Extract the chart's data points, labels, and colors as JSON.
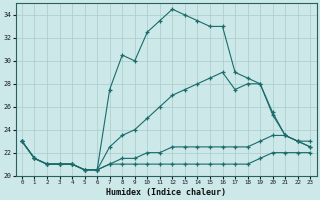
{
  "xlabel": "Humidex (Indice chaleur)",
  "bg_color": "#cce8e8",
  "grid_color": "#aacccc",
  "line_color": "#1a6b6b",
  "xlim": [
    -0.5,
    23.5
  ],
  "ylim": [
    20,
    35
  ],
  "xticks": [
    0,
    1,
    2,
    3,
    4,
    5,
    6,
    7,
    8,
    9,
    10,
    11,
    12,
    13,
    14,
    15,
    16,
    17,
    18,
    19,
    20,
    21,
    22,
    23
  ],
  "yticks": [
    20,
    22,
    24,
    26,
    28,
    30,
    32,
    34
  ],
  "line_peak_x": [
    0,
    1,
    2,
    3,
    4,
    5,
    6,
    7,
    8,
    9,
    10,
    11,
    12,
    13,
    14,
    15,
    16,
    17,
    18,
    19,
    20,
    21,
    22,
    23
  ],
  "line_peak_y": [
    23,
    21.5,
    21,
    21,
    21,
    20.5,
    20.5,
    27.5,
    30.5,
    30,
    32.5,
    33.5,
    34.5,
    34,
    33.5,
    33,
    33,
    29,
    28.5,
    28,
    25.3,
    23.5,
    23,
    22.5
  ],
  "line_mid_x": [
    0,
    1,
    2,
    3,
    4,
    5,
    6,
    7,
    8,
    9,
    10,
    11,
    12,
    13,
    14,
    15,
    16,
    17,
    18,
    19,
    20,
    21,
    22,
    23
  ],
  "line_mid_y": [
    23,
    21.5,
    21,
    21,
    21,
    20.5,
    20.5,
    22.5,
    23.5,
    24,
    25,
    26,
    27,
    27.5,
    28,
    28.5,
    29,
    27.5,
    28,
    28,
    25.5,
    23.5,
    23,
    22.5
  ],
  "line_low_x": [
    0,
    1,
    2,
    3,
    4,
    5,
    6,
    7,
    8,
    9,
    10,
    11,
    12,
    13,
    14,
    15,
    16,
    17,
    18,
    19,
    20,
    21,
    22,
    23
  ],
  "line_low_y": [
    23,
    21.5,
    21,
    21,
    21,
    20.5,
    20.5,
    21,
    21.5,
    21.5,
    22,
    22,
    22.5,
    22.5,
    22.5,
    22.5,
    22.5,
    22.5,
    22.5,
    23,
    23.5,
    23.5,
    23,
    23
  ],
  "line_flat_x": [
    0,
    1,
    2,
    3,
    4,
    5,
    6,
    7,
    8,
    9,
    10,
    11,
    12,
    13,
    14,
    15,
    16,
    17,
    18,
    19,
    20,
    21,
    22,
    23
  ],
  "line_flat_y": [
    23,
    21.5,
    21,
    21,
    21,
    20.5,
    20.5,
    21,
    21,
    21,
    21,
    21,
    21,
    21,
    21,
    21,
    21,
    21,
    21,
    21.5,
    22,
    22,
    22,
    22
  ]
}
